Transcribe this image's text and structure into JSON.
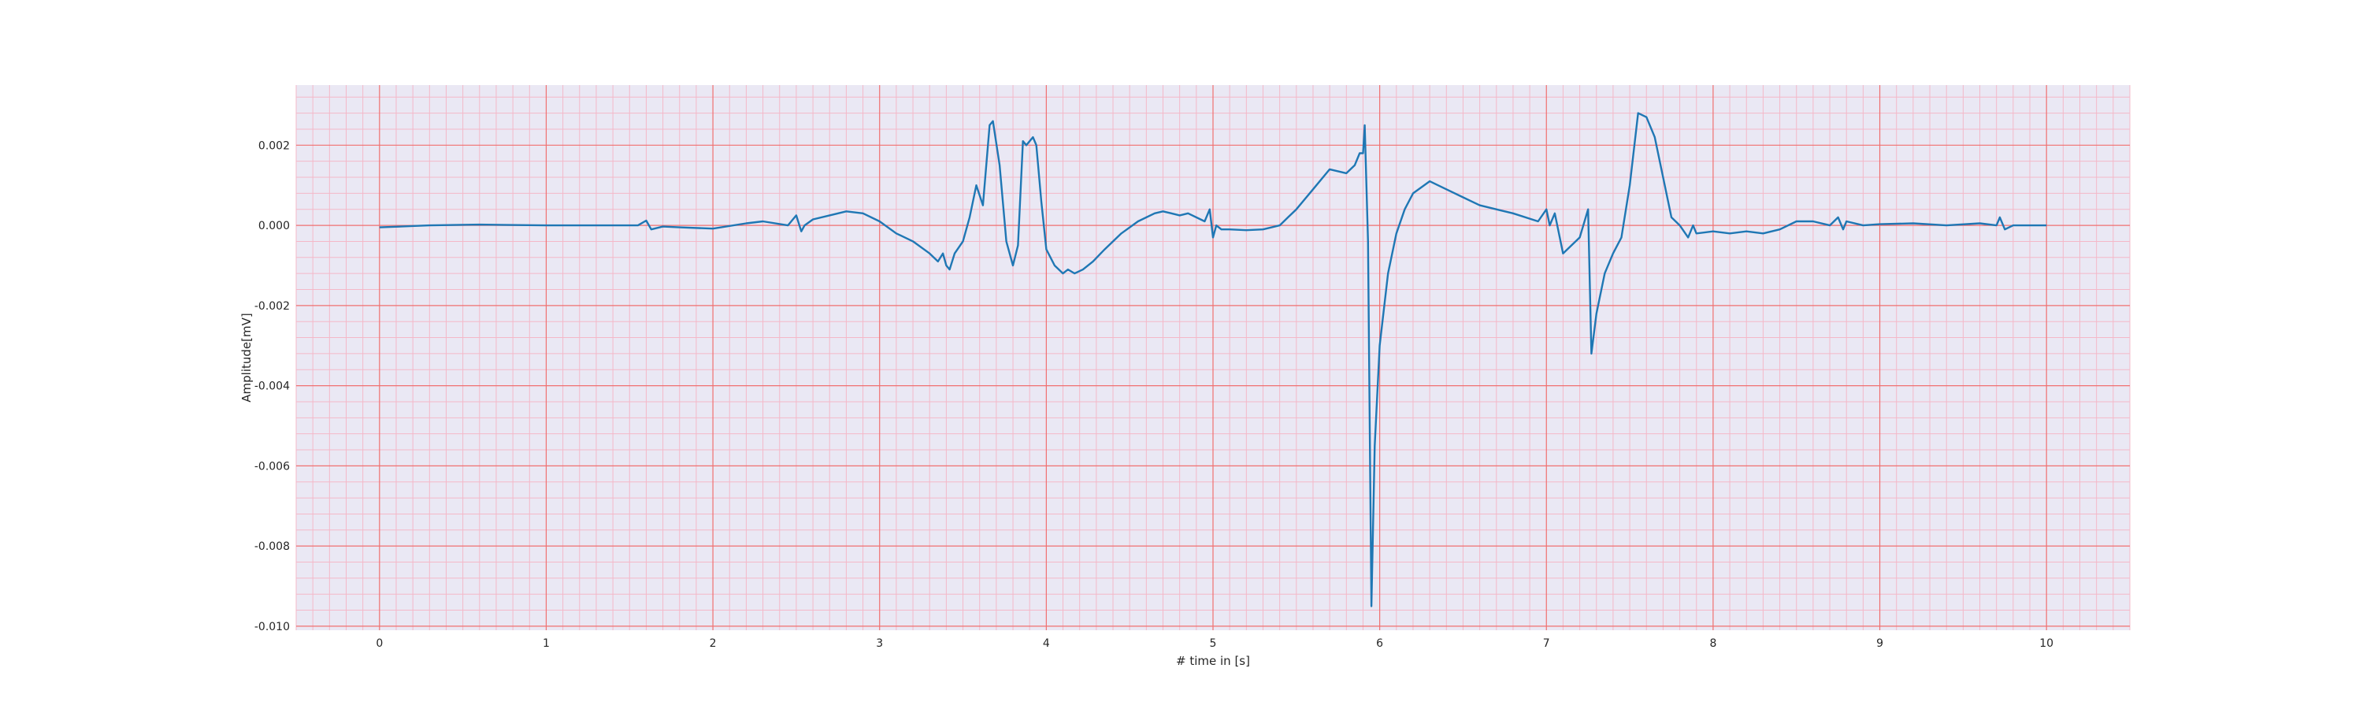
{
  "chart_data": {
    "type": "line",
    "title": "",
    "xlabel": "# time in [s]",
    "ylabel": "Amplitude[mV]",
    "xlim": [
      -0.5,
      10.5
    ],
    "ylim": [
      -0.0101,
      0.0035
    ],
    "xticks": [
      0,
      1,
      2,
      3,
      4,
      5,
      6,
      7,
      8,
      9,
      10
    ],
    "xtick_labels": [
      "0",
      "1",
      "2",
      "3",
      "4",
      "5",
      "6",
      "7",
      "8",
      "9",
      "10"
    ],
    "yticks": [
      -0.01,
      -0.008,
      -0.006,
      -0.004,
      -0.002,
      0.0,
      0.002
    ],
    "ytick_labels": [
      "-0.010",
      "-0.008",
      "-0.006",
      "-0.004",
      "-0.002",
      "0.000",
      "0.002"
    ],
    "grid": true,
    "minor_grid": true,
    "legend": "none",
    "colors": {
      "background": "#eae8f4",
      "major_grid": "#f07070",
      "minor_grid": "#f4b8c8",
      "line": "#1f77b4"
    },
    "series": [
      {
        "x": [
          0.0,
          0.3,
          0.6,
          1.0,
          1.4,
          1.55,
          1.6,
          1.63,
          1.7,
          1.8,
          2.0,
          2.2,
          2.3,
          2.45,
          2.5,
          2.53,
          2.55,
          2.6,
          2.7,
          2.8,
          2.9,
          3.0,
          3.1,
          3.2,
          3.3,
          3.35,
          3.38,
          3.4,
          3.42,
          3.45,
          3.5,
          3.54,
          3.58,
          3.62,
          3.66,
          3.68,
          3.72,
          3.76,
          3.8,
          3.83,
          3.86,
          3.88,
          3.92,
          3.94,
          3.97,
          4.0,
          4.05,
          4.1,
          4.13,
          4.17,
          4.22,
          4.28,
          4.35,
          4.45,
          4.55,
          4.65,
          4.7,
          4.75,
          4.8,
          4.85,
          4.95,
          4.98,
          5.0,
          5.02,
          5.05,
          5.1,
          5.2,
          5.3,
          5.4,
          5.45,
          5.5,
          5.6,
          5.7,
          5.8,
          5.85,
          5.88,
          5.9,
          5.91,
          5.93,
          5.95,
          5.97,
          6.0,
          6.05,
          6.1,
          6.15,
          6.2,
          6.3,
          6.4,
          6.5,
          6.6,
          6.8,
          6.95,
          7.0,
          7.02,
          7.05,
          7.1,
          7.2,
          7.25,
          7.27,
          7.3,
          7.35,
          7.4,
          7.45,
          7.5,
          7.55,
          7.6,
          7.65,
          7.7,
          7.75,
          7.8,
          7.85,
          7.88,
          7.9,
          8.0,
          8.1,
          8.2,
          8.3,
          8.4,
          8.5,
          8.6,
          8.7,
          8.75,
          8.78,
          8.8,
          8.9,
          9.0,
          9.2,
          9.4,
          9.6,
          9.7,
          9.72,
          9.75,
          9.8,
          9.9,
          10.0
        ],
        "y": [
          -5e-05,
          0.0,
          2e-05,
          0.0,
          0.0,
          0.0,
          0.00012,
          -0.0001,
          -3e-05,
          -5e-05,
          -8e-05,
          5e-05,
          0.0001,
          0.0,
          0.00025,
          -0.00015,
          0.0,
          0.00015,
          0.00025,
          0.00035,
          0.0003,
          0.0001,
          -0.0002,
          -0.0004,
          -0.0007,
          -0.0009,
          -0.0007,
          -0.001,
          -0.0011,
          -0.0007,
          -0.0004,
          0.0002,
          0.001,
          0.0005,
          0.0025,
          0.0026,
          0.0015,
          -0.0004,
          -0.001,
          -0.0005,
          0.0021,
          0.002,
          0.0022,
          0.002,
          0.0006,
          -0.0006,
          -0.001,
          -0.0012,
          -0.0011,
          -0.0012,
          -0.0011,
          -0.0009,
          -0.0006,
          -0.0002,
          0.0001,
          0.0003,
          0.00035,
          0.0003,
          0.00025,
          0.0003,
          0.0001,
          0.0004,
          -0.0003,
          0.0,
          -0.0001,
          -0.0001,
          -0.00012,
          -0.0001,
          0.0,
          0.0002,
          0.0004,
          0.0009,
          0.0014,
          0.0013,
          0.0015,
          0.0018,
          0.0018,
          0.0025,
          -0.0004,
          -0.0095,
          -0.0055,
          -0.003,
          -0.0012,
          -0.0002,
          0.0004,
          0.0008,
          0.0011,
          0.0009,
          0.0007,
          0.0005,
          0.0003,
          0.0001,
          0.0004,
          0.0,
          0.0003,
          -0.0007,
          -0.0003,
          0.0004,
          -0.0032,
          -0.0022,
          -0.0012,
          -0.0007,
          -0.0003,
          0.001,
          0.0028,
          0.0027,
          0.0022,
          0.0012,
          0.0002,
          0.0,
          -0.0003,
          0.0,
          -0.0002,
          -0.00015,
          -0.0002,
          -0.00015,
          -0.0002,
          -0.0001,
          0.0001,
          0.0001,
          0.0,
          0.0002,
          -0.0001,
          0.0001,
          0.0,
          3e-05,
          5e-05,
          0.0,
          5e-05,
          0.0,
          0.0002,
          -0.0001,
          0.0,
          0.0,
          0.0
        ]
      }
    ]
  }
}
